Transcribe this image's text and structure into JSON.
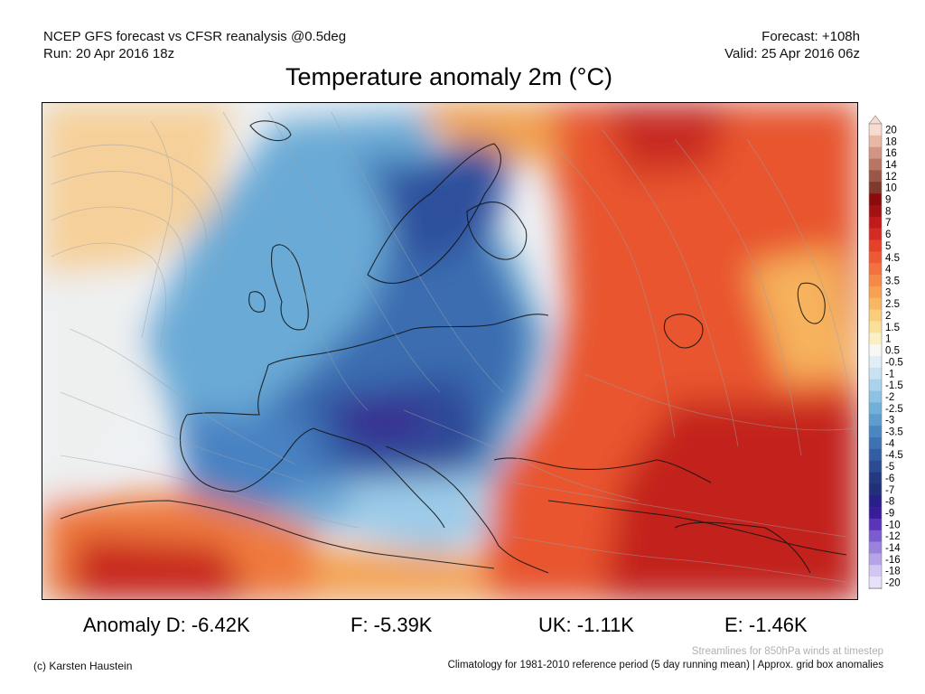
{
  "header": {
    "line1_left": "NCEP GFS forecast vs CFSR reanalysis @0.5deg",
    "line2_left": "Run: 20 Apr 2016 18z",
    "line1_right": "Forecast: +108h",
    "line2_right": "Valid: 25 Apr 2016 06z"
  },
  "title": "Temperature anomaly 2m (°C)",
  "colorbar": {
    "labels": [
      "20",
      "18",
      "16",
      "14",
      "12",
      "10",
      "9",
      "8",
      "7",
      "6",
      "5",
      "4.5",
      "4",
      "3.5",
      "3",
      "2.5",
      "2",
      "1.5",
      "1",
      "0.5",
      "-0.5",
      "-1",
      "-1.5",
      "-2",
      "-2.5",
      "-3",
      "-3.5",
      "-4",
      "-4.5",
      "-5",
      "-6",
      "-7",
      "-8",
      "-9",
      "-10",
      "-12",
      "-14",
      "-16",
      "-18",
      "-20"
    ],
    "colors": [
      "#f6dcd0",
      "#e8b8a4",
      "#d39583",
      "#b87564",
      "#9a5646",
      "#7d3a2d",
      "#8a0b0b",
      "#a31212",
      "#c01a1a",
      "#d42b22",
      "#e4402a",
      "#ec5a33",
      "#f2713e",
      "#f58a48",
      "#f7a253",
      "#f8b863",
      "#f9cd7b",
      "#fadf9b",
      "#fbefc4",
      "#f7f7f5",
      "#e2eef7",
      "#c8e2f2",
      "#a9d3ec",
      "#8cc2e3",
      "#73b0d9",
      "#5e9ccd",
      "#4b86c0",
      "#3e72b2",
      "#335ea2",
      "#2b4b92",
      "#243a80",
      "#22307a",
      "#281f88",
      "#3a1c9a",
      "#5a35b8",
      "#7a5cce",
      "#9a82dc",
      "#b7a4e8",
      "#d2c6f3",
      "#e7e1fa"
    ]
  },
  "stats": {
    "d": "Anomaly D: -6.42K",
    "f": "F: -5.39K",
    "uk": "UK: -1.11K",
    "e": "E: -1.46K"
  },
  "footer": {
    "copyright": "(c) Karsten Haustein",
    "streamlines": "Streamlines for 850hPa winds at timestep",
    "climatology": "Climatology for 1981-2010 reference period (5 day running mean) | Approx. grid box anomalies"
  }
}
